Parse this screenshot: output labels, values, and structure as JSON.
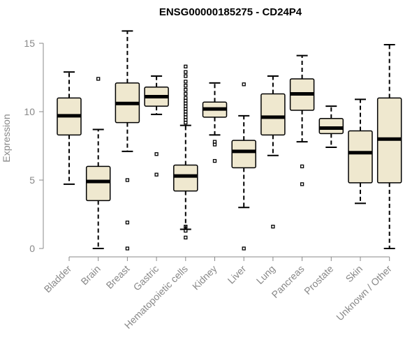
{
  "chart_data": {
    "type": "boxplot",
    "title": "ENSG00000185275 - CD24P4",
    "xlabel": "",
    "ylabel": "Expression",
    "ylim": [
      0,
      15.5
    ],
    "yticks": [
      0,
      5,
      10,
      15
    ],
    "categories": [
      "Bladder",
      "Brain",
      "Breast",
      "Gastric",
      "Hematopoietic cells",
      "Kidney",
      "Liver",
      "Lung",
      "Pancreas",
      "Prostate",
      "Skin",
      "Unknown / Other"
    ],
    "boxes": [
      {
        "label": "Bladder",
        "whisker_low": 4.7,
        "q1": 8.3,
        "median": 9.7,
        "q3": 11.0,
        "whisker_high": 12.9,
        "outliers": []
      },
      {
        "label": "Brain",
        "whisker_low": 0.0,
        "q1": 3.5,
        "median": 4.9,
        "q3": 6.0,
        "whisker_high": 8.7,
        "outliers": [
          12.4
        ]
      },
      {
        "label": "Breast",
        "whisker_low": 7.1,
        "q1": 9.2,
        "median": 10.6,
        "q3": 12.1,
        "whisker_high": 15.9,
        "outliers": [
          0.0,
          1.9,
          5.0
        ]
      },
      {
        "label": "Gastric",
        "whisker_low": 9.8,
        "q1": 10.4,
        "median": 11.1,
        "q3": 11.8,
        "whisker_high": 12.6,
        "outliers": [
          5.4,
          6.9
        ]
      },
      {
        "label": "Hematopoietic cells",
        "whisker_low": 1.4,
        "q1": 4.2,
        "median": 5.3,
        "q3": 6.1,
        "whisker_high": 9.0,
        "outliers": [
          0.8,
          1.3,
          1.6,
          9.2,
          9.4,
          9.6,
          9.8,
          10.0,
          10.2,
          10.4,
          10.6,
          10.8,
          11.0,
          11.3,
          11.6,
          11.9,
          12.2,
          12.6,
          12.9,
          13.3
        ]
      },
      {
        "label": "Kidney",
        "whisker_low": 8.3,
        "q1": 9.6,
        "median": 10.2,
        "q3": 10.7,
        "whisker_high": 12.1,
        "outliers": [
          6.4,
          7.6,
          7.8
        ]
      },
      {
        "label": "Liver",
        "whisker_low": 3.0,
        "q1": 5.9,
        "median": 7.1,
        "q3": 7.9,
        "whisker_high": 9.7,
        "outliers": [
          0.0,
          12.0
        ]
      },
      {
        "label": "Lung",
        "whisker_low": 6.8,
        "q1": 8.3,
        "median": 9.6,
        "q3": 11.3,
        "whisker_high": 12.6,
        "outliers": [
          1.6
        ]
      },
      {
        "label": "Pancreas",
        "whisker_low": 7.8,
        "q1": 10.1,
        "median": 11.3,
        "q3": 12.4,
        "whisker_high": 14.1,
        "outliers": [
          4.7,
          6.0
        ]
      },
      {
        "label": "Prostate",
        "whisker_low": 7.4,
        "q1": 8.4,
        "median": 8.8,
        "q3": 9.5,
        "whisker_high": 10.4,
        "outliers": []
      },
      {
        "label": "Skin",
        "whisker_low": 3.3,
        "q1": 4.8,
        "median": 7.0,
        "q3": 8.6,
        "whisker_high": 10.9,
        "outliers": []
      },
      {
        "label": "Unknown / Other",
        "whisker_low": 0.0,
        "q1": 4.8,
        "median": 8.0,
        "q3": 11.0,
        "whisker_high": 14.9,
        "outliers": []
      }
    ],
    "grid": false,
    "box_fill": "#efe8cf",
    "axis_color": "#888888"
  }
}
